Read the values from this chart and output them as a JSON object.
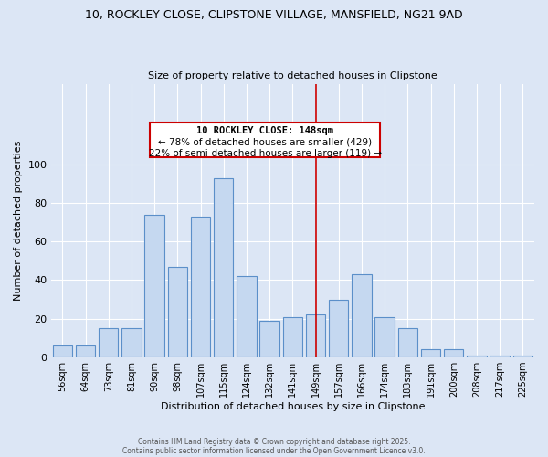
{
  "title_line1": "10, ROCKLEY CLOSE, CLIPSTONE VILLAGE, MANSFIELD, NG21 9AD",
  "title_line2": "Size of property relative to detached houses in Clipstone",
  "xlabel": "Distribution of detached houses by size in Clipstone",
  "ylabel": "Number of detached properties",
  "categories": [
    "56sqm",
    "64sqm",
    "73sqm",
    "81sqm",
    "90sqm",
    "98sqm",
    "107sqm",
    "115sqm",
    "124sqm",
    "132sqm",
    "141sqm",
    "149sqm",
    "157sqm",
    "166sqm",
    "174sqm",
    "183sqm",
    "191sqm",
    "200sqm",
    "208sqm",
    "217sqm",
    "225sqm"
  ],
  "values": [
    6,
    6,
    15,
    15,
    74,
    47,
    73,
    93,
    42,
    19,
    21,
    22,
    30,
    43,
    21,
    15,
    4,
    4,
    1,
    1,
    1
  ],
  "bar_color": "#c5d8f0",
  "bar_edge_color": "#5b8fc9",
  "highlight_line_index": 11,
  "highlight_line_color": "#cc0000",
  "annotation_title": "10 ROCKLEY CLOSE: 148sqm",
  "annotation_line1": "← 78% of detached houses are smaller (429)",
  "annotation_line2": "22% of semi-detached houses are larger (119) →",
  "annotation_box_edge": "#cc0000",
  "ylim": [
    0,
    120
  ],
  "yticks": [
    0,
    20,
    40,
    60,
    80,
    100
  ],
  "background_color": "#dce6f5",
  "grid_color": "#ffffff",
  "footer_line1": "Contains HM Land Registry data © Crown copyright and database right 2025.",
  "footer_line2": "Contains public sector information licensed under the Open Government Licence v3.0."
}
